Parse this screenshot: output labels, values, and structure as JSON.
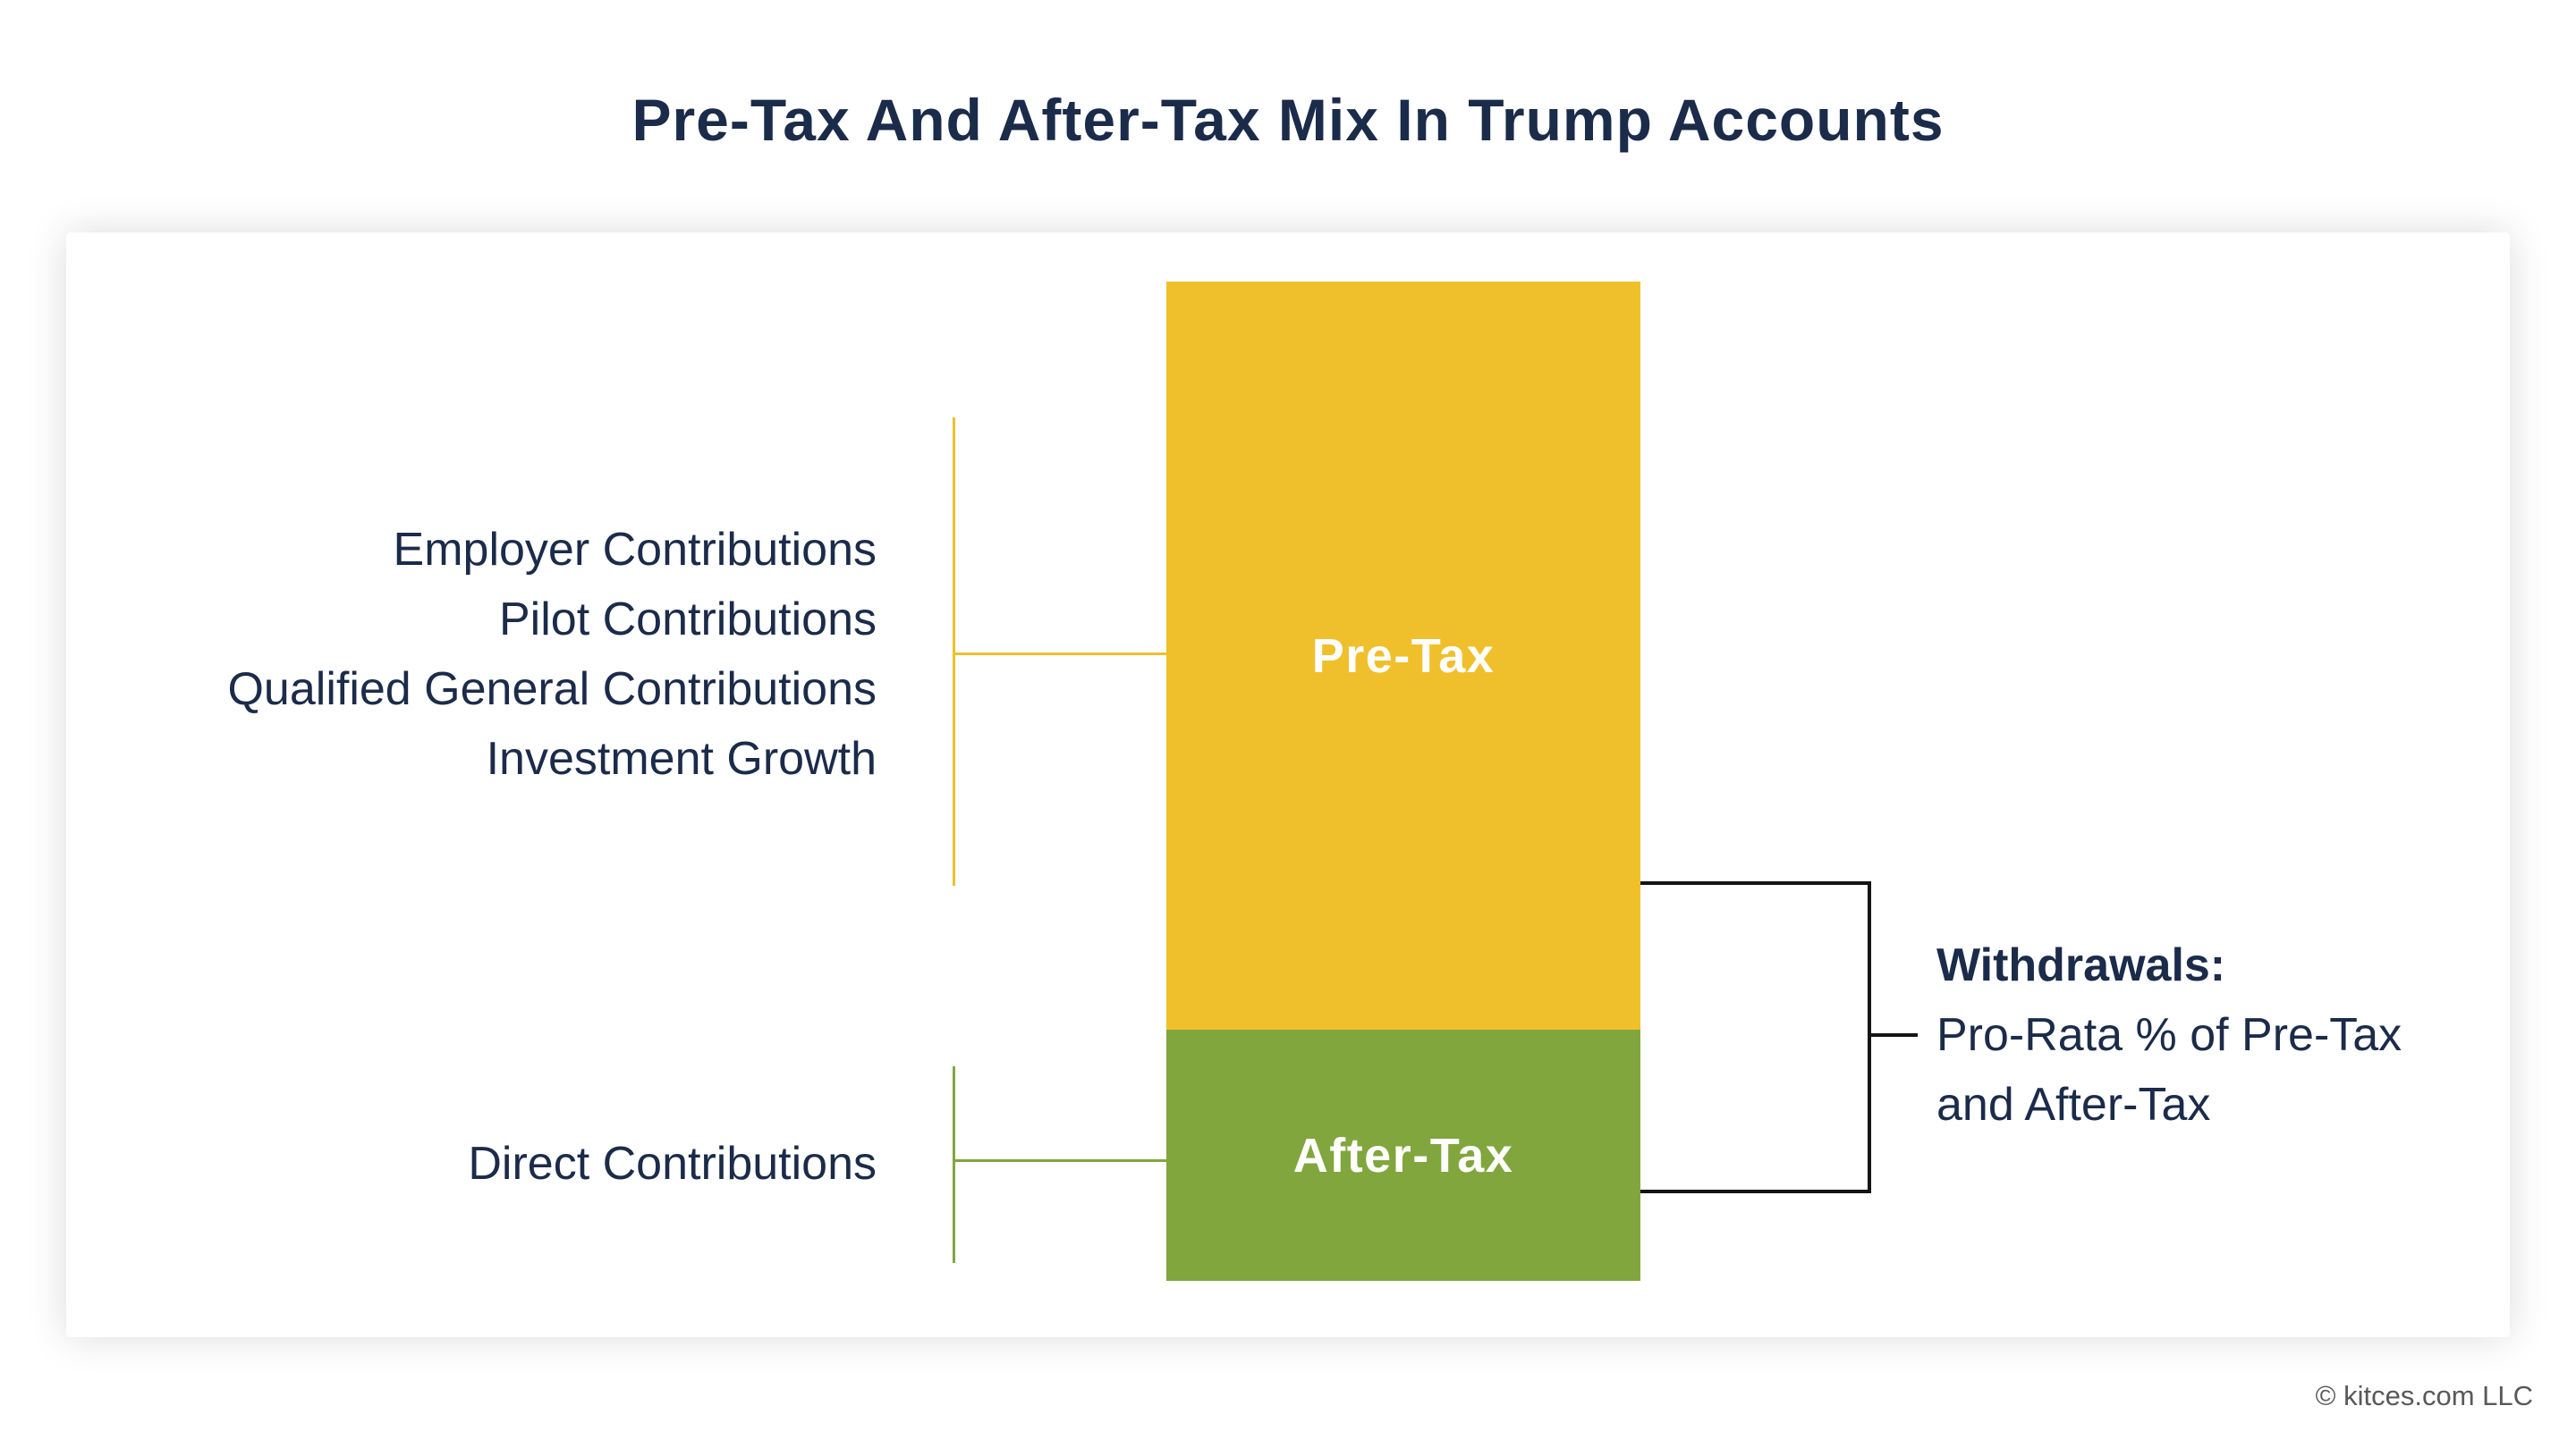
{
  "page": {
    "title": "Pre-Tax And After-Tax Mix In Trump Accounts",
    "footer": "© kitces.com LLC"
  },
  "colors": {
    "navy_text": "#1B2B4A",
    "pretax_yellow": "#F0C02C",
    "aftertax_green": "#81A63D",
    "bracket_black": "#141414",
    "footer_gray": "#58595B"
  },
  "diagram": {
    "bar_segments": [
      {
        "label": "Pre-Tax",
        "color": "#F0C02C",
        "share": 0.75
      },
      {
        "label": "After-Tax",
        "color": "#81A63D",
        "share": 0.25
      }
    ],
    "pretax_sources": [
      "Employer Contributions",
      "Pilot Contributions",
      "Qualified General Contributions",
      "Investment Growth"
    ],
    "aftertax_sources": [
      "Direct Contributions"
    ],
    "withdrawals": {
      "heading": "Withdrawals:",
      "line1": "Pro-Rata % of Pre-Tax",
      "line2": "and After-Tax"
    }
  }
}
